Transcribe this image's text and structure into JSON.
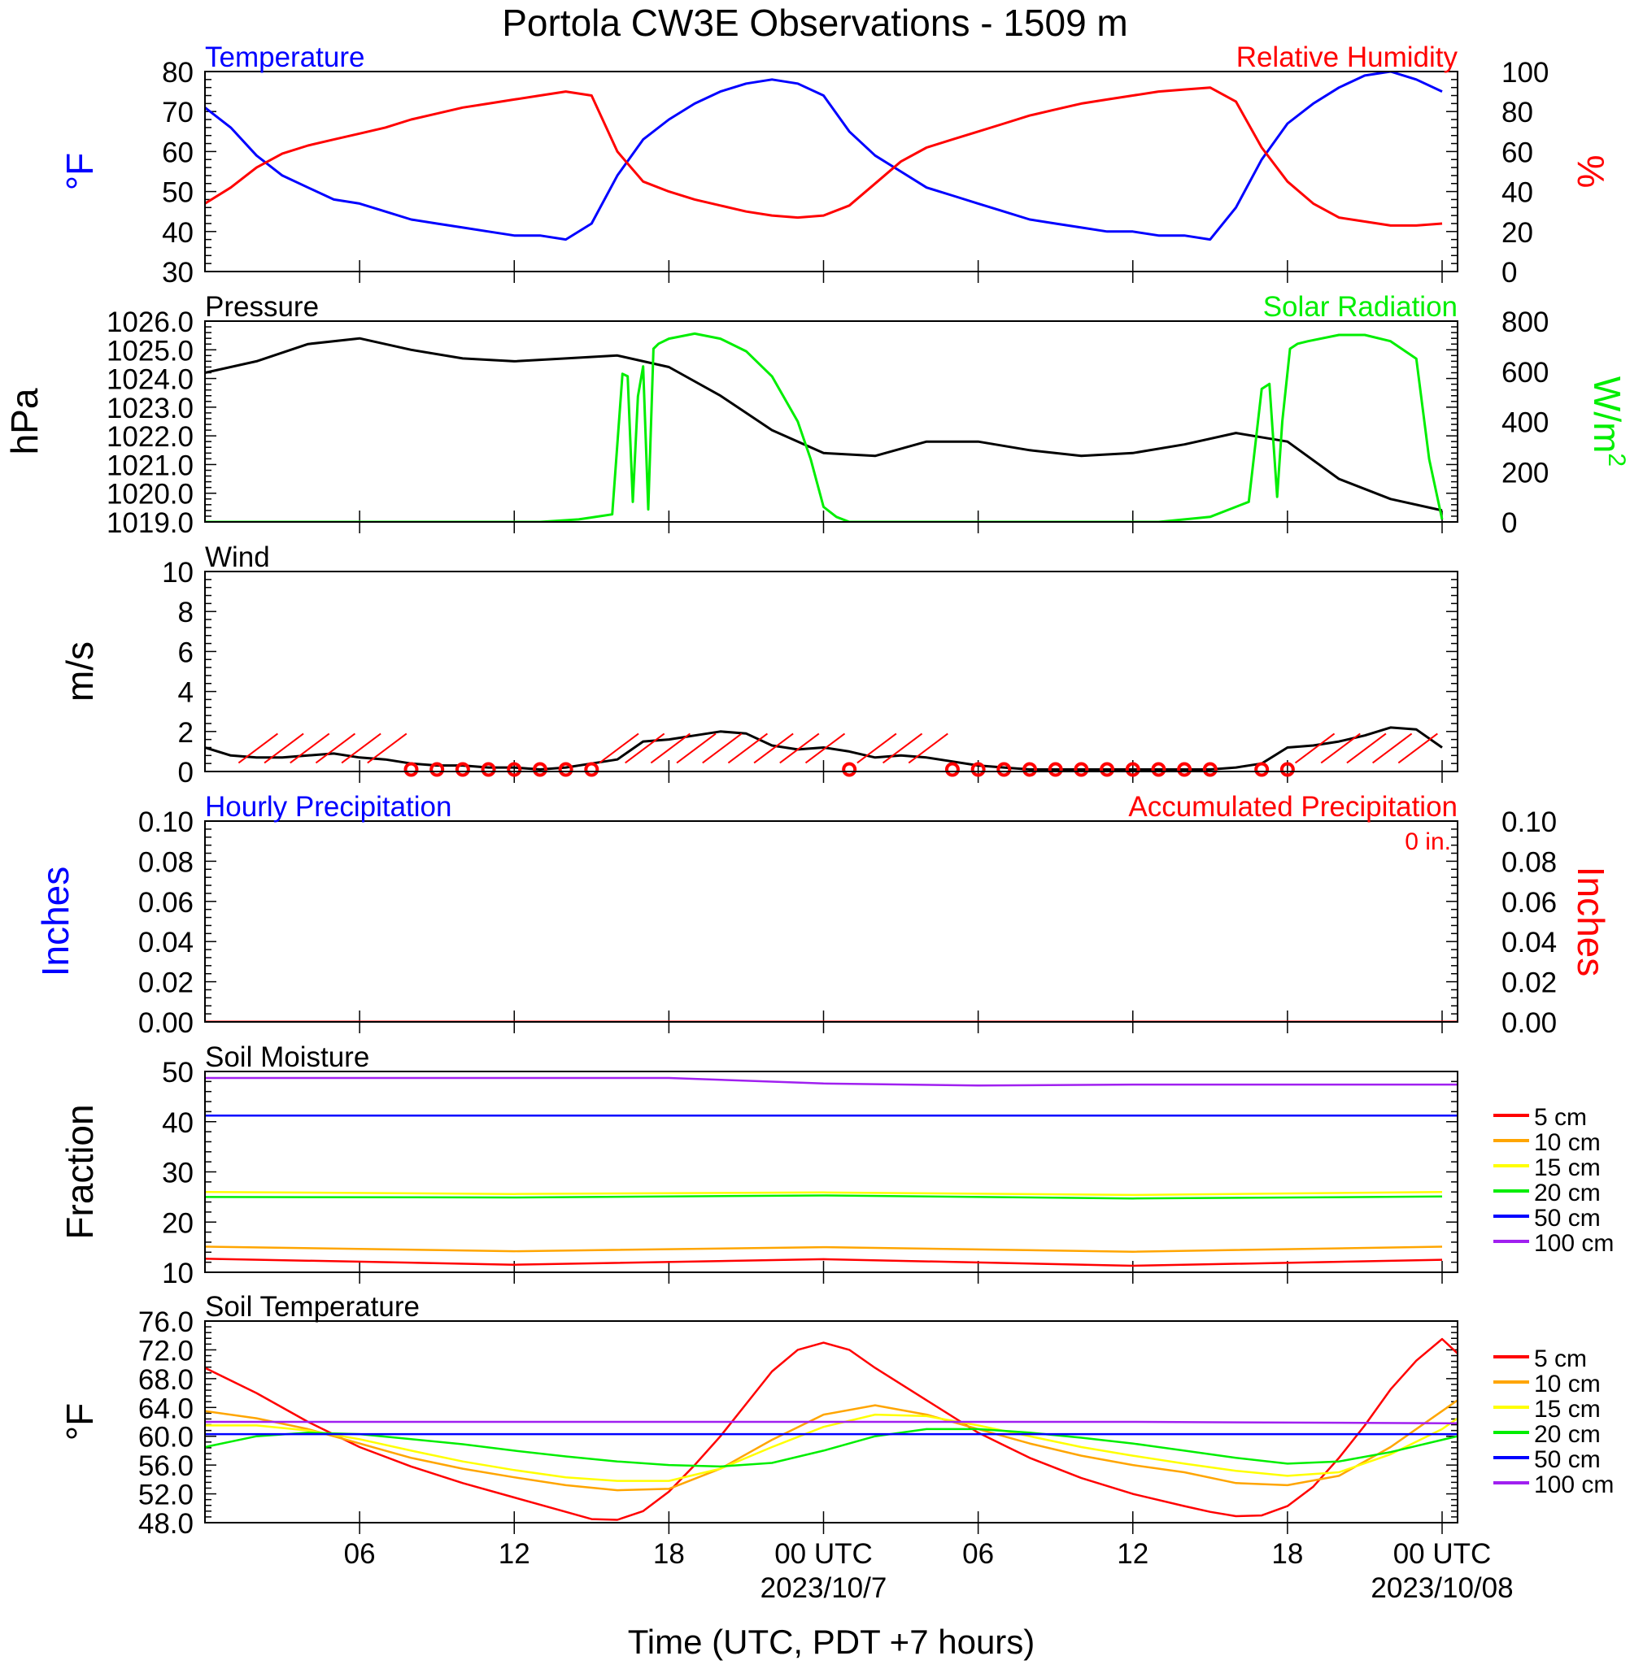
{
  "title": "Portola CW3E Observations - 1509 m",
  "xaxis": {
    "label": "Time (UTC, PDT +7 hours)",
    "ticks": [
      {
        "hour": 6,
        "label": "06"
      },
      {
        "hour": 12,
        "label": "12"
      },
      {
        "hour": 18,
        "label": "18"
      },
      {
        "hour": 24,
        "label": "00 UTC"
      },
      {
        "hour": 30,
        "label": "06"
      },
      {
        "hour": 36,
        "label": "12"
      },
      {
        "hour": 42,
        "label": "18"
      },
      {
        "hour": 48,
        "label": "00 UTC"
      }
    ],
    "dates": [
      {
        "hour": 24,
        "label": "2023/10/7"
      },
      {
        "hour": 48,
        "label": "2023/10/08"
      }
    ],
    "range_hours": [
      0,
      48.6
    ],
    "start": "2023-10-06 00:00 UTC"
  },
  "colors": {
    "temperature": "#0000ff",
    "humidity": "#ff0000",
    "pressure": "#000000",
    "solar": "#00ee00",
    "wind": "#000000",
    "barb": "#ff0000",
    "precip_hourly": "#0000ff",
    "precip_accum": "#ff0000",
    "depth_5cm": "#ff0000",
    "depth_10cm": "#ffa500",
    "depth_15cm": "#ffff00",
    "depth_20cm": "#00ee00",
    "depth_50cm": "#0000ff",
    "depth_100cm": "#a020f0"
  },
  "chart_data": [
    {
      "type": "line",
      "panel": "temperature_humidity",
      "left_title": "Temperature",
      "right_title": "Relative Humidity",
      "left_ylabel": "°F",
      "right_ylabel": "%",
      "left_ylim": [
        30,
        80
      ],
      "right_ylim": [
        0,
        100
      ],
      "left_ticks": [
        "30",
        "40",
        "50",
        "60",
        "70",
        "80"
      ],
      "right_ticks": [
        "0",
        "20",
        "40",
        "60",
        "80",
        "100"
      ],
      "series": [
        {
          "name": "Temperature",
          "axis": "left",
          "x": [
            0,
            1,
            2,
            3,
            4,
            5,
            6,
            7,
            8,
            9,
            10,
            11,
            12,
            13,
            14,
            15,
            16,
            17,
            18,
            19,
            20,
            21,
            22,
            23,
            24,
            25,
            26,
            27,
            28,
            29,
            30,
            31,
            32,
            33,
            34,
            35,
            36,
            37,
            38,
            39,
            40,
            41,
            42,
            43,
            44,
            45,
            46,
            47,
            48
          ],
          "y": [
            71,
            66,
            59,
            54,
            51,
            48,
            47,
            45,
            43,
            42,
            41,
            40,
            39,
            39,
            38,
            42,
            54,
            63,
            68,
            72,
            75,
            77,
            78,
            77,
            74,
            65,
            59,
            55,
            51,
            49,
            47,
            45,
            43,
            42,
            41,
            40,
            40,
            39,
            39,
            38,
            46,
            58,
            67,
            72,
            76,
            79,
            80,
            78,
            75
          ]
        },
        {
          "name": "Relative Humidity",
          "axis": "right",
          "x": [
            0,
            1,
            2,
            3,
            4,
            5,
            6,
            7,
            8,
            9,
            10,
            11,
            12,
            13,
            14,
            15,
            16,
            17,
            18,
            19,
            20,
            21,
            22,
            23,
            24,
            25,
            26,
            27,
            28,
            29,
            30,
            31,
            32,
            33,
            34,
            35,
            36,
            37,
            38,
            39,
            40,
            41,
            42,
            43,
            44,
            45,
            46,
            47,
            48
          ],
          "y": [
            34,
            42,
            52,
            59,
            63,
            66,
            69,
            72,
            76,
            79,
            82,
            84,
            86,
            88,
            90,
            88,
            60,
            45,
            40,
            36,
            33,
            30,
            28,
            27,
            28,
            33,
            44,
            55,
            62,
            66,
            70,
            74,
            78,
            81,
            84,
            86,
            88,
            90,
            91,
            92,
            85,
            62,
            45,
            34,
            27,
            25,
            23,
            23,
            24
          ]
        }
      ]
    },
    {
      "type": "line",
      "panel": "pressure_solar",
      "left_title": "Pressure",
      "right_title": "Solar Radiation",
      "left_ylabel": "hPa",
      "right_ylabel": "W/m",
      "right_ylabel_sup": "2",
      "left_ylim": [
        1019,
        1026
      ],
      "right_ylim": [
        0,
        800
      ],
      "left_ticks": [
        "1019.0",
        "1020.0",
        "1021.0",
        "1022.0",
        "1023.0",
        "1024.0",
        "1025.0",
        "1026.0"
      ],
      "right_ticks": [
        "0",
        "200",
        "400",
        "600",
        "800"
      ],
      "series": [
        {
          "name": "Pressure",
          "axis": "left",
          "x": [
            0,
            2,
            4,
            6,
            8,
            10,
            12,
            14,
            16,
            18,
            20,
            22,
            24,
            26,
            28,
            30,
            32,
            34,
            36,
            38,
            40,
            42,
            44,
            46,
            48
          ],
          "y": [
            1024.2,
            1024.6,
            1025.2,
            1025.4,
            1025.0,
            1024.7,
            1024.6,
            1024.7,
            1024.8,
            1024.4,
            1023.4,
            1022.2,
            1021.4,
            1021.3,
            1021.8,
            1021.8,
            1021.5,
            1021.3,
            1021.4,
            1021.7,
            1022.1,
            1021.8,
            1020.5,
            1019.8,
            1019.4
          ]
        },
        {
          "name": "Solar Radiation",
          "axis": "right",
          "x": [
            0,
            13,
            14.5,
            15.8,
            16.2,
            16.4,
            16.6,
            16.8,
            17,
            17.2,
            17.4,
            17.6,
            18,
            19,
            20,
            21,
            22,
            23,
            23.5,
            24,
            24.5,
            25,
            37,
            39,
            40.5,
            41,
            41.3,
            41.6,
            41.8,
            42.1,
            42.4,
            42.8,
            44,
            45,
            46,
            47,
            47.5,
            48
          ],
          "y": [
            0,
            0,
            10,
            30,
            590,
            580,
            80,
            500,
            620,
            50,
            690,
            710,
            730,
            750,
            730,
            680,
            580,
            400,
            250,
            60,
            20,
            0,
            0,
            20,
            80,
            530,
            550,
            100,
            400,
            690,
            710,
            720,
            745,
            745,
            720,
            650,
            250,
            10
          ]
        }
      ]
    },
    {
      "type": "line",
      "panel": "wind",
      "left_title": "Wind",
      "left_ylabel": "m/s",
      "left_ylim": [
        0,
        10
      ],
      "left_ticks": [
        "0",
        "2",
        "4",
        "6",
        "8",
        "10"
      ],
      "series": [
        {
          "name": "Wind",
          "axis": "left",
          "x": [
            0,
            1,
            2,
            3,
            4,
            5,
            6,
            7,
            8,
            9,
            10,
            11,
            12,
            13,
            14,
            15,
            16,
            17,
            18,
            19,
            20,
            21,
            22,
            23,
            24,
            25,
            26,
            27,
            28,
            29,
            30,
            31,
            32,
            33,
            34,
            35,
            36,
            37,
            38,
            39,
            40,
            41,
            42,
            43,
            44,
            45,
            46,
            47,
            48
          ],
          "y": [
            1.2,
            0.8,
            0.7,
            0.7,
            0.8,
            0.9,
            0.7,
            0.6,
            0.4,
            0.3,
            0.3,
            0.2,
            0.2,
            0.1,
            0.2,
            0.4,
            0.6,
            1.5,
            1.6,
            1.8,
            2.0,
            1.9,
            1.3,
            1.1,
            1.2,
            1.0,
            0.7,
            0.8,
            0.7,
            0.5,
            0.3,
            0.2,
            0.1,
            0.1,
            0.1,
            0.1,
            0.1,
            0.1,
            0.1,
            0.1,
            0.2,
            0.4,
            1.2,
            1.3,
            1.5,
            1.8,
            2.2,
            2.1,
            1.2
          ]
        }
      ],
      "calm_hours": [
        8,
        9,
        10,
        11,
        12,
        13,
        14,
        15,
        25,
        29,
        30,
        31,
        32,
        33,
        34,
        35,
        36,
        37,
        38,
        39,
        41,
        42
      ],
      "barb_hours": [
        2,
        3,
        4,
        5,
        6,
        7,
        16,
        17,
        18,
        19,
        20,
        21,
        22,
        23,
        24,
        26,
        27,
        28,
        43,
        44,
        45,
        46,
        47
      ]
    },
    {
      "type": "line",
      "panel": "precipitation",
      "left_title": "Hourly Precipitation",
      "right_title": "Accumulated Precipitation",
      "annotation": "0 in.",
      "left_ylabel": "Inches",
      "right_ylabel": "Inches",
      "left_ylim": [
        0,
        0.1
      ],
      "right_ylim": [
        0,
        0.1
      ],
      "left_ticks": [
        "0.00",
        "0.02",
        "0.04",
        "0.06",
        "0.08",
        "0.10"
      ],
      "right_ticks": [
        "0.00",
        "0.02",
        "0.04",
        "0.06",
        "0.08",
        "0.10"
      ],
      "series": [
        {
          "name": "Hourly Precipitation",
          "axis": "left",
          "x": [
            0,
            48.6
          ],
          "y": [
            0,
            0
          ]
        },
        {
          "name": "Accumulated Precipitation",
          "axis": "right",
          "x": [
            0,
            48.6
          ],
          "y": [
            0,
            0
          ]
        }
      ]
    },
    {
      "type": "line",
      "panel": "soil_moisture",
      "left_title": "Soil Moisture",
      "left_ylabel": "Fraction",
      "left_ylim": [
        10,
        50
      ],
      "left_ticks": [
        "10",
        "20",
        "30",
        "40",
        "50"
      ],
      "legend": [
        "5 cm",
        "10 cm",
        "15 cm",
        "20 cm",
        "50 cm",
        "100 cm"
      ],
      "series": [
        {
          "name": "5 cm",
          "axis": "left",
          "x": [
            0,
            12,
            24,
            36,
            48
          ],
          "y": [
            12.7,
            11.5,
            12.6,
            11.3,
            12.5
          ]
        },
        {
          "name": "10 cm",
          "axis": "left",
          "x": [
            0,
            12,
            24,
            36,
            48
          ],
          "y": [
            15.1,
            14.2,
            15.0,
            14.1,
            15.1
          ]
        },
        {
          "name": "15 cm",
          "axis": "left",
          "x": [
            0,
            12,
            24,
            36,
            48
          ],
          "y": [
            26.0,
            25.6,
            25.9,
            25.4,
            26.0
          ]
        },
        {
          "name": "20 cm",
          "axis": "left",
          "x": [
            0,
            12,
            24,
            36,
            48
          ],
          "y": [
            25.0,
            24.9,
            25.3,
            24.7,
            25.1
          ]
        },
        {
          "name": "50 cm",
          "axis": "left",
          "x": [
            0,
            48.6
          ],
          "y": [
            41.2,
            41.2
          ]
        },
        {
          "name": "100 cm",
          "axis": "left",
          "x": [
            0,
            18,
            24,
            30,
            36,
            48.6
          ],
          "y": [
            48.7,
            48.7,
            47.6,
            47.2,
            47.4,
            47.4
          ]
        }
      ]
    },
    {
      "type": "line",
      "panel": "soil_temperature",
      "left_title": "Soil Temperature",
      "left_ylabel": "°F",
      "left_ylim": [
        48,
        76
      ],
      "left_ticks": [
        "48.0",
        "52.0",
        "56.0",
        "60.0",
        "64.0",
        "68.0",
        "72.0",
        "76.0"
      ],
      "legend": [
        "5 cm",
        "10 cm",
        "15 cm",
        "20 cm",
        "50 cm",
        "100 cm"
      ],
      "series": [
        {
          "name": "5 cm",
          "axis": "left",
          "x": [
            0,
            2,
            4,
            6,
            8,
            10,
            12,
            14,
            15,
            16,
            17,
            18,
            19,
            20,
            21,
            22,
            23,
            24,
            25,
            26,
            28,
            30,
            32,
            34,
            36,
            38,
            39,
            40,
            41,
            42,
            43,
            44,
            45,
            46,
            47,
            48,
            48.6
          ],
          "y": [
            69.5,
            66.0,
            62.0,
            58.5,
            55.8,
            53.5,
            51.5,
            49.5,
            48.5,
            48.4,
            49.6,
            52.3,
            56.0,
            60.0,
            64.5,
            69.0,
            72.0,
            73.0,
            72.0,
            69.5,
            65.0,
            60.5,
            57.0,
            54.2,
            52.0,
            50.3,
            49.5,
            48.9,
            49.0,
            50.3,
            53.0,
            57.0,
            61.5,
            66.5,
            70.5,
            73.5,
            71.5
          ]
        },
        {
          "name": "10 cm",
          "axis": "left",
          "x": [
            0,
            2,
            4,
            6,
            8,
            10,
            12,
            14,
            16,
            18,
            20,
            22,
            24,
            26,
            28,
            30,
            32,
            34,
            36,
            38,
            40,
            42,
            44,
            46,
            48,
            48.6
          ],
          "y": [
            63.5,
            62.5,
            61.0,
            59.0,
            57.0,
            55.5,
            54.3,
            53.2,
            52.5,
            52.7,
            55.5,
            59.5,
            63.0,
            64.3,
            63.0,
            61.0,
            59.0,
            57.3,
            56.0,
            55.0,
            53.5,
            53.2,
            54.5,
            58.5,
            63.5,
            65.0
          ]
        },
        {
          "name": "15 cm",
          "axis": "left",
          "x": [
            0,
            2,
            4,
            6,
            8,
            10,
            12,
            14,
            16,
            18,
            20,
            22,
            24,
            26,
            28,
            30,
            32,
            34,
            36,
            38,
            40,
            42,
            44,
            46,
            48,
            48.6
          ],
          "y": [
            61.5,
            61.5,
            60.8,
            59.6,
            58.0,
            56.5,
            55.3,
            54.3,
            53.8,
            53.8,
            55.5,
            58.5,
            61.3,
            63.0,
            62.8,
            61.5,
            60.0,
            58.5,
            57.3,
            56.2,
            55.2,
            54.5,
            55.0,
            57.5,
            61.0,
            62.5
          ]
        },
        {
          "name": "20 cm",
          "axis": "left",
          "x": [
            0,
            2,
            4,
            6,
            8,
            10,
            12,
            14,
            16,
            18,
            20,
            22,
            24,
            26,
            28,
            30,
            32,
            34,
            36,
            38,
            40,
            42,
            44,
            46,
            48,
            48.6
          ],
          "y": [
            58.5,
            60.0,
            60.5,
            60.3,
            59.6,
            58.9,
            58.0,
            57.2,
            56.5,
            56.0,
            55.8,
            56.3,
            58.0,
            60.0,
            61.0,
            61.0,
            60.5,
            59.8,
            59.0,
            58.0,
            57.0,
            56.2,
            56.5,
            57.8,
            59.5,
            60.0
          ]
        },
        {
          "name": "50 cm",
          "axis": "left",
          "x": [
            0,
            48.6
          ],
          "y": [
            60.3,
            60.3
          ]
        },
        {
          "name": "100 cm",
          "axis": "left",
          "x": [
            0,
            36,
            48.6
          ],
          "y": [
            62.0,
            62.0,
            61.8
          ]
        }
      ]
    }
  ]
}
